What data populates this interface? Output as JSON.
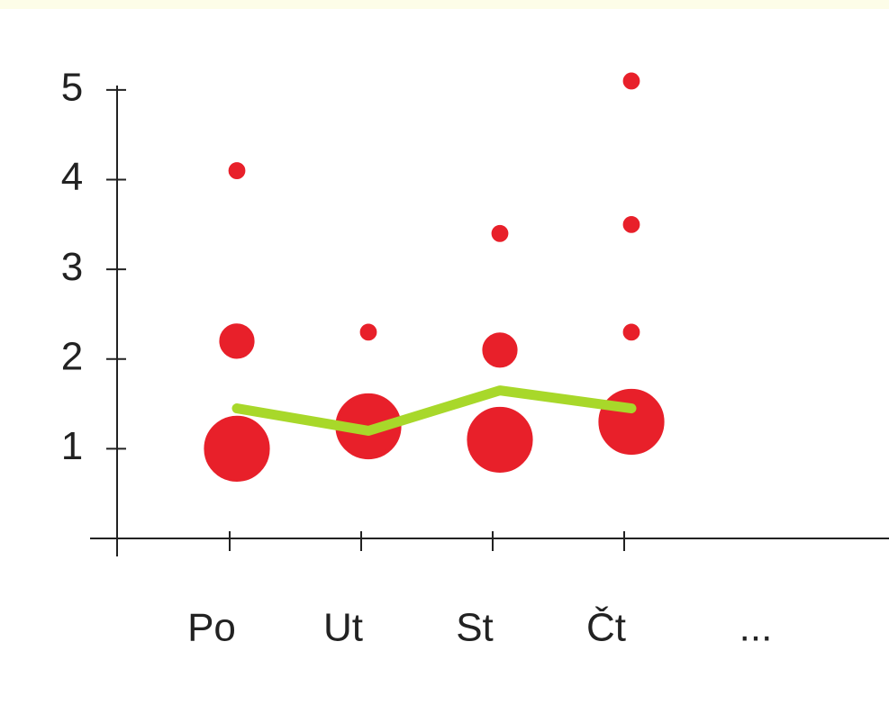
{
  "chart_data": {
    "type": "bubble",
    "categories": [
      "Po",
      "Ut",
      "St",
      "Čt",
      "..."
    ],
    "ylim": [
      0,
      5.2
    ],
    "yticks": [
      1,
      2,
      3,
      4,
      5
    ],
    "points": {
      "x": [
        "Po",
        "Po",
        "Po",
        "Ut",
        "Ut",
        "St",
        "St",
        "St",
        "Čt",
        "Čt",
        "Čt",
        "Čt"
      ],
      "y": [
        4.1,
        2.2,
        1.0,
        2.3,
        1.25,
        3.4,
        2.1,
        1.1,
        5.1,
        3.5,
        2.3,
        1.3
      ],
      "size": [
        1,
        2,
        3,
        1,
        3,
        1,
        2,
        3,
        1,
        1,
        1,
        3
      ],
      "color": "#e8202a"
    },
    "line": {
      "values": [
        1.45,
        1.2,
        1.65,
        1.45,
        null
      ],
      "color": "#a8d82a"
    }
  }
}
